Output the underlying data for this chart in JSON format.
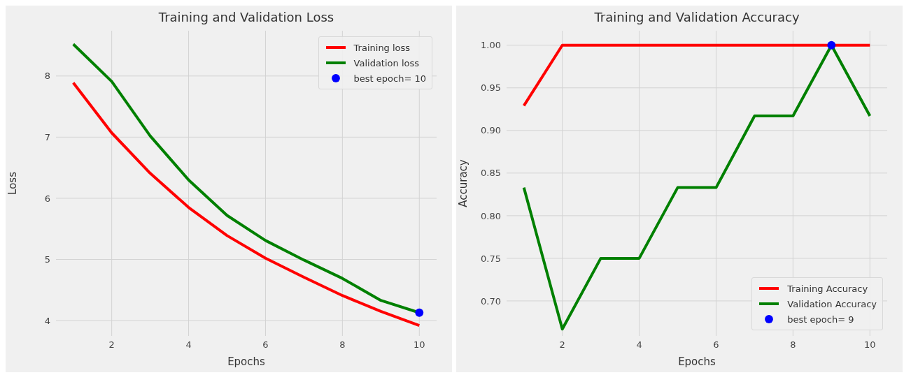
{
  "chart_data": [
    {
      "type": "line",
      "title": "Training and Validation Loss",
      "xlabel": "Epochs",
      "ylabel": "Loss",
      "x": [
        1,
        2,
        3,
        4,
        5,
        6,
        7,
        8,
        9,
        10
      ],
      "xlim": [
        0.55,
        10.45
      ],
      "xticks": [
        2,
        4,
        6,
        8,
        10
      ],
      "ylim": [
        3.75,
        8.74
      ],
      "yticks": [
        4,
        5,
        6,
        7,
        8
      ],
      "grid": true,
      "legend": "top right",
      "series": [
        {
          "name": "Training loss",
          "color": "#ff0000",
          "values": [
            7.89,
            7.07,
            6.41,
            5.85,
            5.39,
            5.02,
            4.71,
            4.41,
            4.15,
            3.92
          ]
        },
        {
          "name": "Validation loss",
          "color": "#008000",
          "values": [
            8.52,
            7.91,
            7.02,
            6.3,
            5.72,
            5.31,
            4.99,
            4.69,
            4.33,
            4.13
          ]
        },
        {
          "name": "best epoch= 10",
          "type": "scatter",
          "marker": "circle",
          "color": "#0000ff",
          "x": [
            10
          ],
          "values": [
            4.13
          ]
        }
      ]
    },
    {
      "type": "line",
      "title": "Training and Validation Accuracy",
      "xlabel": "Epochs",
      "ylabel": "Accuracy",
      "x": [
        1,
        2,
        3,
        4,
        5,
        6,
        7,
        8,
        9,
        10
      ],
      "xlim": [
        0.55,
        10.45
      ],
      "xticks": [
        2,
        4,
        6,
        8,
        10
      ],
      "ylim": [
        0.659,
        1.017
      ],
      "yticks": [
        {
          "value": 0.7,
          "label": "0.70"
        },
        {
          "value": 0.75,
          "label": "0.75"
        },
        {
          "value": 0.8,
          "label": "0.80"
        },
        {
          "value": 0.85,
          "label": "0.85"
        },
        {
          "value": 0.9,
          "label": "0.90"
        },
        {
          "value": 0.95,
          "label": "0.95"
        },
        {
          "value": 1,
          "label": "1.00"
        }
      ],
      "grid": true,
      "legend": "bottom right",
      "series": [
        {
          "name": "Training Accuracy",
          "color": "#ff0000",
          "values": [
            0.929,
            1,
            1,
            1,
            1,
            1,
            1,
            1,
            1,
            1
          ]
        },
        {
          "name": "Validation Accuracy",
          "color": "#008000",
          "values": [
            0.833,
            0.667,
            0.75,
            0.75,
            0.833,
            0.833,
            0.917,
            0.917,
            1,
            0.917
          ]
        },
        {
          "name": "best epoch= 9",
          "type": "scatter",
          "marker": "circle",
          "color": "#0000ff",
          "x": [
            9
          ],
          "values": [
            1
          ]
        }
      ]
    }
  ]
}
